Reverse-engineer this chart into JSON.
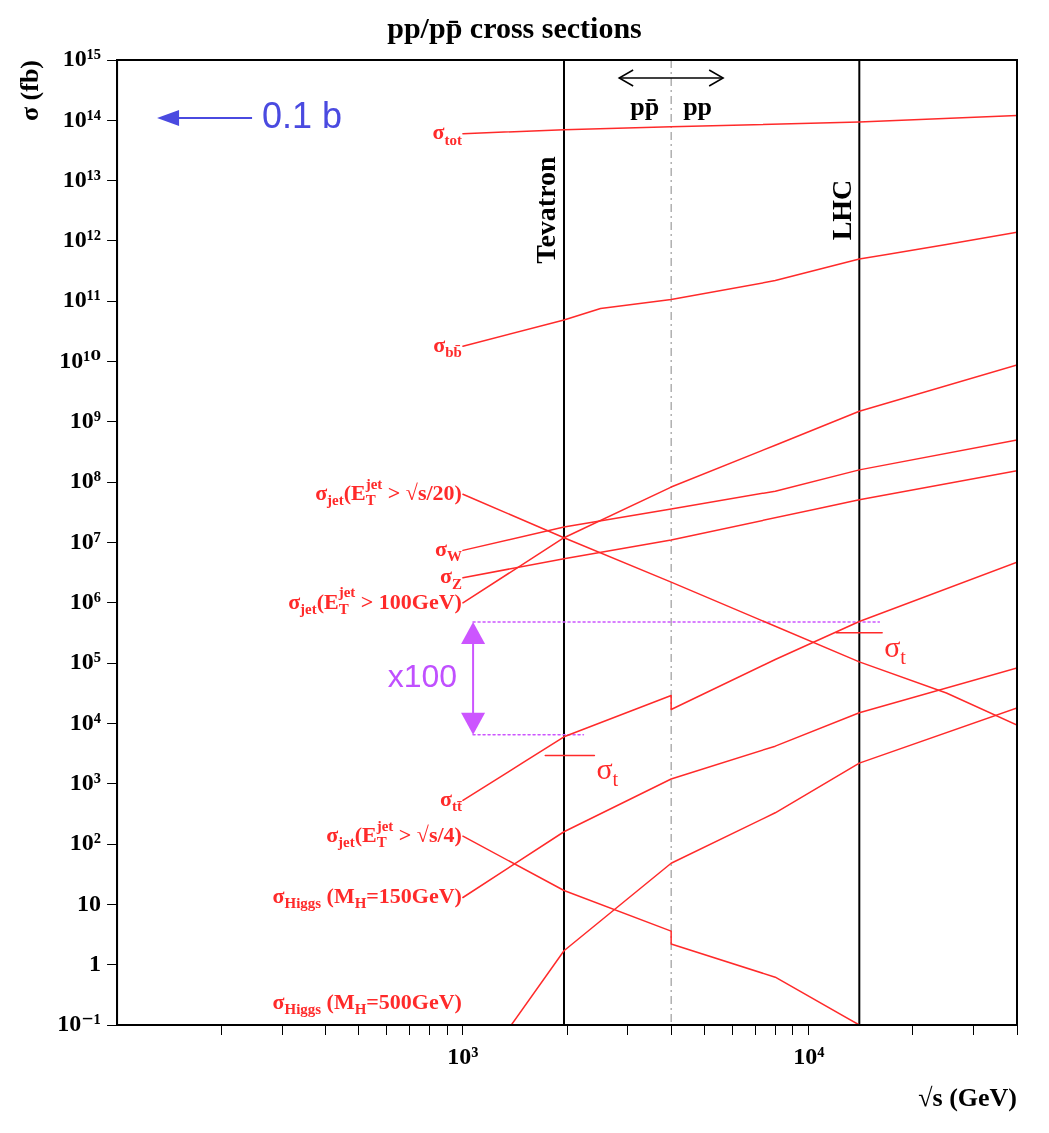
{
  "chart_data": {
    "type": "line",
    "title": "pp/pp̄ cross sections",
    "xlabel": "√s (GeV)",
    "ylabel": "σ (fb)",
    "log": "xy",
    "grid": false,
    "legend": false,
    "marker": "none",
    "line_style": "solid",
    "xlim": [
      100,
      40000
    ],
    "ylim": [
      0.1,
      1000000000000000.0
    ],
    "xticks": [
      {
        "value": 200,
        "label": null
      },
      {
        "value": 300,
        "label": null
      },
      {
        "value": 400,
        "label": null
      },
      {
        "value": 500,
        "label": null
      },
      {
        "value": 600,
        "label": null
      },
      {
        "value": 700,
        "label": null
      },
      {
        "value": 800,
        "label": null
      },
      {
        "value": 900,
        "label": null
      },
      {
        "value": 1000,
        "label": "10³"
      },
      {
        "value": 2000,
        "label": null
      },
      {
        "value": 3000,
        "label": null
      },
      {
        "value": 4000,
        "label": null
      },
      {
        "value": 5000,
        "label": null
      },
      {
        "value": 6000,
        "label": null
      },
      {
        "value": 7000,
        "label": null
      },
      {
        "value": 8000,
        "label": null
      },
      {
        "value": 9000,
        "label": null
      },
      {
        "value": 10000,
        "label": "10⁴"
      },
      {
        "value": 20000,
        "label": null
      },
      {
        "value": 30000,
        "label": null
      },
      {
        "value": 40000,
        "label": null
      }
    ],
    "yticks": [
      {
        "value": 0.1,
        "label": "10⁻¹"
      },
      1,
      10,
      {
        "value": 100,
        "label": "10²"
      },
      {
        "value": 1000,
        "label": "10³"
      },
      {
        "value": 10000,
        "label": "10⁴"
      },
      {
        "value": 100000,
        "label": "10⁵"
      },
      {
        "value": 1000000,
        "label": "10⁶"
      },
      {
        "value": 10000000,
        "label": "10⁷"
      },
      {
        "value": 100000000,
        "label": "10⁸"
      },
      {
        "value": 1000000000,
        "label": "10⁹"
      },
      {
        "value": 10000000000,
        "label": "10¹⁰"
      },
      {
        "value": 100000000000,
        "label": "10¹¹"
      },
      {
        "value": 1000000000000,
        "label": "10¹²"
      },
      {
        "value": 10000000000000,
        "label": "10¹³"
      },
      {
        "value": 100000000000000,
        "label": "10¹⁴"
      },
      {
        "value": 1000000000000000,
        "label": "10¹⁵"
      }
    ],
    "series": [
      {
        "name": "σ$_{tot}$",
        "color": "#ff2a2a",
        "x": [
          1000,
          1960,
          4000,
          14000,
          40000
        ],
        "values": [
          60000000000000.0,
          70000000000000.0,
          78000000000000.0,
          94000000000000.0,
          120000000000000.0
        ]
      },
      {
        "name": "σ$_{bb̄}$",
        "color": "#ff2a2a",
        "x": [
          1000,
          1960,
          2500,
          4000,
          8000,
          14000,
          25000,
          40000
        ],
        "values": [
          18000000000.0,
          49000000000.0,
          76000000000.0,
          107000000000.0,
          220000000000.0,
          500000000000.0,
          870000000000.0,
          1400000000000.0
        ]
      },
      {
        "name": "σ$_{jet}$(E$_{T}$$^{jet}$ > √s/20)",
        "color": "#ff2a2a",
        "x": [
          1000,
          1960,
          4000,
          14000,
          25000,
          40000
        ],
        "values": [
          63000000.0,
          12000000.0,
          2200000.0,
          105000.0,
          32000.0,
          9400.0
        ]
      },
      {
        "name": "σ$_{W}$",
        "color": "#ff2a2a",
        "x": [
          1000,
          1960,
          4000,
          8000,
          14000,
          40000
        ],
        "values": [
          7400000.0,
          18000000.0,
          36000000.0,
          71000000.0,
          160000000.0,
          500000000.0
        ]
      },
      {
        "name": "σ$_{Z}$",
        "color": "#ff2a2a",
        "x": [
          1000,
          1960,
          4000,
          14000,
          40000
        ],
        "values": [
          2600000.0,
          5400000.0,
          11000000.0,
          51000000.0,
          155000000.0
        ]
      },
      {
        "name": "σ$_{jet}$(E$_{T}$$^{jet}$ > 100GeV)",
        "color": "#ff2a2a",
        "x": [
          1000,
          1960,
          4000,
          8000,
          14000,
          40000
        ],
        "values": [
          1000000.0,
          12000000.0,
          83000000.0,
          410000000.0,
          1500000000.0,
          8800000000.0
        ]
      },
      {
        "name": "σ$_{tt̄}$",
        "color": "#ff2a2a",
        "x": [
          1000,
          1960,
          4000,
          4000,
          8000,
          14000,
          40000
        ],
        "values": [
          530,
          6000,
          29000,
          17000,
          115000,
          490000,
          4700000
        ]
      },
      {
        "name": "σ$_{jet}$(E$_{T}$$^{jet}$ > √s/4)",
        "color": "#ff2a2a",
        "x": [
          1000,
          1960,
          4000,
          4000,
          8000,
          14000
        ],
        "values": [
          135,
          17,
          3.6,
          2.2,
          0.62,
          0.1
        ]
      },
      {
        "name": "σ$_{Higgs}$ (M$_{H}$=150GeV)",
        "color": "#ff2a2a",
        "x": [
          1000,
          1960,
          4000,
          8000,
          14000,
          40000
        ],
        "values": [
          13,
          160,
          1200,
          4200,
          15000,
          83000
        ]
      },
      {
        "name": "σ$_{Higgs}$ (M$_{H}$=500GeV)",
        "color": "#ff2a2a",
        "x": [
          1380,
          1960,
          4000,
          8000,
          14000,
          40000
        ],
        "values": [
          0.1,
          1.7,
          48,
          330,
          2200,
          18000
        ]
      },
      {
        "name": "σ$_{t}$",
        "color": "#ff2a2a",
        "x": [
          1730,
          2400,
          5000,
          12000,
          16300
        ],
        "values": [
          2950,
          2950,
          null,
          320000,
          320000
        ]
      },
      {
        "color": "#cc55ff",
        "line_style": "dotted",
        "x": [
          1070,
          16000
        ],
        "values": [
          480000,
          480000
        ]
      },
      {
        "color": "#cc55ff",
        "line_style": "dotted",
        "x": [
          1070,
          2230
        ],
        "values": [
          6500,
          6500
        ]
      }
    ],
    "ref_lines": [
      {
        "axis": "x",
        "value": 1960,
        "label": "Tevatron",
        "color": "#000000"
      },
      {
        "axis": "x",
        "value": 14000,
        "label": "LHC",
        "color": "#000000"
      },
      {
        "axis": "x",
        "value": 4000,
        "color": "#888888",
        "line_style": "dashed"
      }
    ],
    "annotations": [
      "0.1 b",
      "pp̄",
      "pp",
      "x100"
    ]
  }
}
